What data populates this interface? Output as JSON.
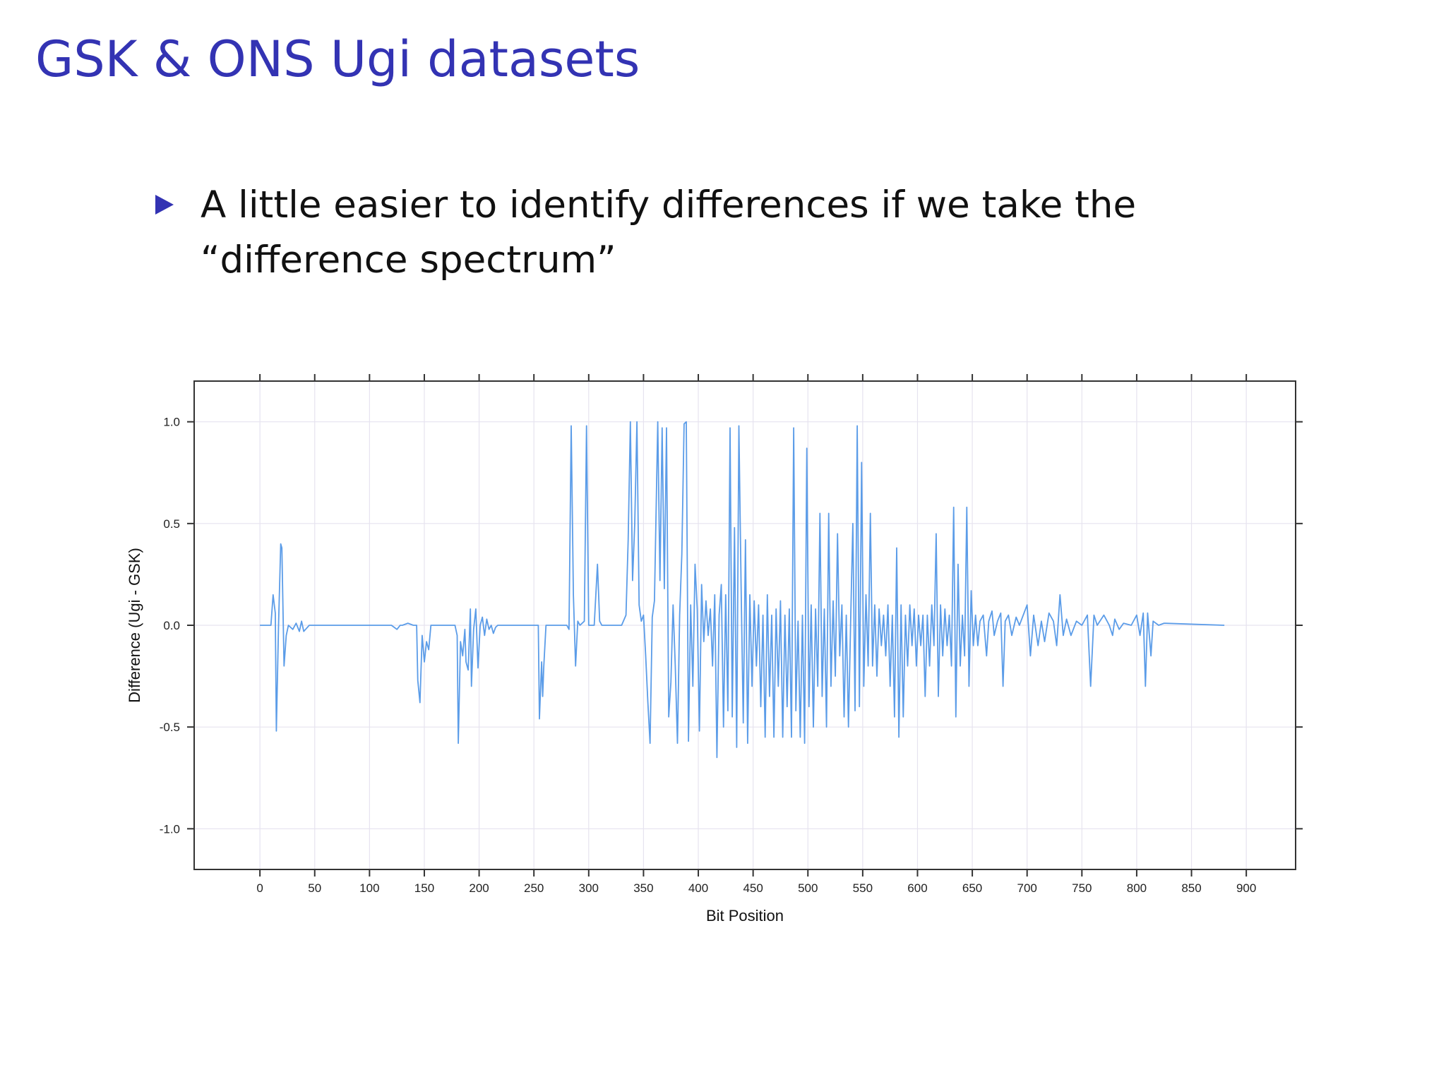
{
  "slide": {
    "title": "GSK & ONS Ugi datasets",
    "bullet": "A little easier to identify differences if we take the “difference spectrum”"
  },
  "colors": {
    "title": "#3333b3",
    "bullet": "#3333b3",
    "series": "#5b9ce8",
    "grid": "#e6e3ef",
    "frame": "#333333"
  },
  "chart_data": {
    "type": "line",
    "title": "",
    "xlabel": "Bit Position",
    "ylabel": "Difference (Ugi - GSK)",
    "xlim": [
      -60,
      945
    ],
    "ylim": [
      -1.2,
      1.2
    ],
    "xticks": [
      0,
      50,
      100,
      150,
      200,
      250,
      300,
      350,
      400,
      450,
      500,
      550,
      600,
      650,
      700,
      750,
      800,
      850,
      900
    ],
    "xtick_labels": [
      "0",
      "50",
      "100",
      "150",
      "200",
      "250",
      "300",
      "350",
      "400",
      "450",
      "500",
      "550",
      "600",
      "650",
      "700",
      "750",
      "800",
      "850",
      "900"
    ],
    "yticks": [
      -1.0,
      -0.5,
      0.0,
      0.5,
      1.0
    ],
    "ytick_labels": [
      "-1.0",
      "-0.5",
      "0.0",
      "0.5",
      "1.0"
    ],
    "grid": true,
    "series": [
      {
        "color": "#5b9ce8",
        "points": [
          [
            0,
            0
          ],
          [
            10,
            0
          ],
          [
            12,
            0.15
          ],
          [
            14,
            0.06
          ],
          [
            15,
            -0.52
          ],
          [
            17,
            0
          ],
          [
            19,
            0.4
          ],
          [
            20,
            0.38
          ],
          [
            22,
            -0.2
          ],
          [
            24,
            -0.05
          ],
          [
            26,
            0
          ],
          [
            30,
            -0.02
          ],
          [
            33,
            0.01
          ],
          [
            36,
            -0.03
          ],
          [
            38,
            0.02
          ],
          [
            40,
            -0.03
          ],
          [
            45,
            0
          ],
          [
            120,
            0
          ],
          [
            125,
            -0.02
          ],
          [
            128,
            0
          ],
          [
            130,
            0
          ],
          [
            135,
            0.01
          ],
          [
            140,
            0
          ],
          [
            143,
            0
          ],
          [
            144,
            -0.27
          ],
          [
            146,
            -0.38
          ],
          [
            148,
            -0.05
          ],
          [
            150,
            -0.18
          ],
          [
            152,
            -0.08
          ],
          [
            154,
            -0.12
          ],
          [
            156,
            0
          ],
          [
            178,
            0
          ],
          [
            180,
            -0.05
          ],
          [
            181,
            -0.58
          ],
          [
            183,
            -0.08
          ],
          [
            185,
            -0.15
          ],
          [
            187,
            -0.02
          ],
          [
            188,
            -0.18
          ],
          [
            190,
            -0.22
          ],
          [
            192,
            0.08
          ],
          [
            193,
            -0.3
          ],
          [
            195,
            -0.02
          ],
          [
            197,
            0.08
          ],
          [
            199,
            -0.21
          ],
          [
            201,
            0
          ],
          [
            203,
            0.04
          ],
          [
            205,
            -0.05
          ],
          [
            207,
            0.03
          ],
          [
            209,
            -0.02
          ],
          [
            211,
            0
          ],
          [
            213,
            -0.04
          ],
          [
            215,
            -0.01
          ],
          [
            217,
            0
          ],
          [
            250,
            0
          ],
          [
            254,
            0
          ],
          [
            255,
            -0.46
          ],
          [
            257,
            -0.18
          ],
          [
            258,
            -0.35
          ],
          [
            259,
            -0.2
          ],
          [
            261,
            0
          ],
          [
            280,
            0
          ],
          [
            282,
            -0.02
          ],
          [
            284,
            0.98
          ],
          [
            286,
            0.15
          ],
          [
            288,
            -0.2
          ],
          [
            290,
            0.02
          ],
          [
            292,
            0
          ],
          [
            296,
            0.02
          ],
          [
            298,
            0.98
          ],
          [
            300,
            0
          ],
          [
            305,
            0
          ],
          [
            308,
            0.3
          ],
          [
            310,
            0.02
          ],
          [
            312,
            0
          ],
          [
            330,
            0
          ],
          [
            334,
            0.05
          ],
          [
            336,
            0.42
          ],
          [
            338,
            1.0
          ],
          [
            340,
            0.22
          ],
          [
            342,
            0.5
          ],
          [
            344,
            1.0
          ],
          [
            346,
            0.1
          ],
          [
            348,
            0.02
          ],
          [
            350,
            0.05
          ],
          [
            352,
            -0.15
          ],
          [
            354,
            -0.38
          ],
          [
            356,
            -0.58
          ],
          [
            358,
            0.04
          ],
          [
            360,
            0.12
          ],
          [
            363,
            1.0
          ],
          [
            365,
            0.22
          ],
          [
            367,
            0.97
          ],
          [
            369,
            0.18
          ],
          [
            371,
            0.97
          ],
          [
            373,
            -0.45
          ],
          [
            375,
            -0.28
          ],
          [
            377,
            0.1
          ],
          [
            379,
            -0.2
          ],
          [
            381,
            -0.58
          ],
          [
            383,
            0.05
          ],
          [
            385,
            0.35
          ],
          [
            387,
            0.99
          ],
          [
            389,
            1.0
          ],
          [
            391,
            -0.57
          ],
          [
            393,
            0.1
          ],
          [
            395,
            -0.3
          ],
          [
            397,
            0.3
          ],
          [
            399,
            0.08
          ],
          [
            401,
            -0.52
          ],
          [
            403,
            0.2
          ],
          [
            405,
            -0.08
          ],
          [
            407,
            0.12
          ],
          [
            409,
            -0.05
          ],
          [
            411,
            0.08
          ],
          [
            413,
            -0.2
          ],
          [
            415,
            0.15
          ],
          [
            417,
            -0.65
          ],
          [
            419,
            0.05
          ],
          [
            421,
            0.2
          ],
          [
            423,
            -0.5
          ],
          [
            425,
            0.15
          ],
          [
            427,
            -0.42
          ],
          [
            429,
            0.97
          ],
          [
            431,
            -0.45
          ],
          [
            433,
            0.48
          ],
          [
            435,
            -0.6
          ],
          [
            437,
            0.98
          ],
          [
            439,
            0.2
          ],
          [
            441,
            -0.48
          ],
          [
            443,
            0.42
          ],
          [
            445,
            -0.58
          ],
          [
            447,
            0.15
          ],
          [
            449,
            -0.3
          ],
          [
            451,
            0.12
          ],
          [
            453,
            -0.2
          ],
          [
            455,
            0.1
          ],
          [
            457,
            -0.4
          ],
          [
            459,
            0.05
          ],
          [
            461,
            -0.55
          ],
          [
            463,
            0.15
          ],
          [
            465,
            -0.35
          ],
          [
            467,
            0.05
          ],
          [
            469,
            -0.55
          ],
          [
            471,
            0.08
          ],
          [
            473,
            -0.3
          ],
          [
            475,
            0.12
          ],
          [
            477,
            -0.55
          ],
          [
            479,
            0.05
          ],
          [
            481,
            -0.4
          ],
          [
            483,
            0.08
          ],
          [
            485,
            -0.55
          ],
          [
            487,
            0.97
          ],
          [
            489,
            -0.42
          ],
          [
            491,
            0.02
          ],
          [
            493,
            -0.55
          ],
          [
            495,
            0.05
          ],
          [
            497,
            -0.58
          ],
          [
            499,
            0.87
          ],
          [
            501,
            -0.4
          ],
          [
            503,
            0.1
          ],
          [
            505,
            -0.5
          ],
          [
            507,
            0.08
          ],
          [
            509,
            -0.3
          ],
          [
            511,
            0.55
          ],
          [
            513,
            -0.35
          ],
          [
            515,
            0.08
          ],
          [
            517,
            -0.5
          ],
          [
            519,
            0.55
          ],
          [
            521,
            -0.3
          ],
          [
            523,
            0.12
          ],
          [
            525,
            -0.25
          ],
          [
            527,
            0.45
          ],
          [
            529,
            -0.15
          ],
          [
            531,
            0.1
          ],
          [
            533,
            -0.45
          ],
          [
            535,
            0.05
          ],
          [
            537,
            -0.5
          ],
          [
            539,
            0.02
          ],
          [
            541,
            0.5
          ],
          [
            543,
            -0.42
          ],
          [
            545,
            0.98
          ],
          [
            547,
            -0.4
          ],
          [
            549,
            0.8
          ],
          [
            551,
            -0.3
          ],
          [
            553,
            0.15
          ],
          [
            555,
            -0.2
          ],
          [
            557,
            0.55
          ],
          [
            559,
            -0.2
          ],
          [
            561,
            0.1
          ],
          [
            563,
            -0.25
          ],
          [
            565,
            0.08
          ],
          [
            567,
            -0.1
          ],
          [
            569,
            0.05
          ],
          [
            571,
            -0.15
          ],
          [
            573,
            0.1
          ],
          [
            575,
            -0.3
          ],
          [
            577,
            0.05
          ],
          [
            579,
            -0.45
          ],
          [
            581,
            0.38
          ],
          [
            583,
            -0.55
          ],
          [
            585,
            0.1
          ],
          [
            587,
            -0.45
          ],
          [
            589,
            0.05
          ],
          [
            591,
            -0.2
          ],
          [
            593,
            0.1
          ],
          [
            595,
            -0.1
          ],
          [
            597,
            0.08
          ],
          [
            599,
            -0.2
          ],
          [
            601,
            0.05
          ],
          [
            603,
            -0.1
          ],
          [
            605,
            0.05
          ],
          [
            607,
            -0.35
          ],
          [
            609,
            0.05
          ],
          [
            611,
            -0.2
          ],
          [
            613,
            0.1
          ],
          [
            615,
            -0.1
          ],
          [
            617,
            0.45
          ],
          [
            619,
            -0.35
          ],
          [
            621,
            0.1
          ],
          [
            623,
            -0.15
          ],
          [
            625,
            0.08
          ],
          [
            627,
            -0.1
          ],
          [
            629,
            0.05
          ],
          [
            631,
            -0.2
          ],
          [
            633,
            0.58
          ],
          [
            635,
            -0.45
          ],
          [
            637,
            0.3
          ],
          [
            639,
            -0.2
          ],
          [
            641,
            0.05
          ],
          [
            643,
            -0.15
          ],
          [
            645,
            0.58
          ],
          [
            647,
            -0.3
          ],
          [
            649,
            0.17
          ],
          [
            651,
            -0.1
          ],
          [
            653,
            0.05
          ],
          [
            655,
            -0.1
          ],
          [
            657,
            0.02
          ],
          [
            660,
            0.05
          ],
          [
            663,
            -0.15
          ],
          [
            665,
            0.02
          ],
          [
            668,
            0.07
          ],
          [
            670,
            -0.05
          ],
          [
            673,
            0.02
          ],
          [
            676,
            0.06
          ],
          [
            678,
            -0.3
          ],
          [
            680,
            0.02
          ],
          [
            683,
            0.05
          ],
          [
            686,
            -0.05
          ],
          [
            690,
            0.04
          ],
          [
            693,
            0
          ],
          [
            700,
            0.1
          ],
          [
            703,
            -0.15
          ],
          [
            706,
            0.05
          ],
          [
            710,
            -0.1
          ],
          [
            713,
            0.02
          ],
          [
            716,
            -0.08
          ],
          [
            720,
            0.06
          ],
          [
            724,
            0.02
          ],
          [
            727,
            -0.1
          ],
          [
            730,
            0.15
          ],
          [
            733,
            -0.05
          ],
          [
            736,
            0.03
          ],
          [
            740,
            -0.05
          ],
          [
            745,
            0.02
          ],
          [
            750,
            0
          ],
          [
            755,
            0.05
          ],
          [
            758,
            -0.3
          ],
          [
            761,
            0.05
          ],
          [
            764,
            0
          ],
          [
            770,
            0.05
          ],
          [
            775,
            0
          ],
          [
            778,
            -0.05
          ],
          [
            780,
            0.03
          ],
          [
            784,
            -0.02
          ],
          [
            788,
            0.01
          ],
          [
            795,
            0
          ],
          [
            800,
            0.05
          ],
          [
            803,
            -0.05
          ],
          [
            806,
            0.06
          ],
          [
            808,
            -0.3
          ],
          [
            810,
            0.06
          ],
          [
            813,
            -0.15
          ],
          [
            815,
            0.02
          ],
          [
            820,
            0
          ],
          [
            825,
            0.01
          ],
          [
            880,
            0
          ]
        ]
      }
    ]
  }
}
